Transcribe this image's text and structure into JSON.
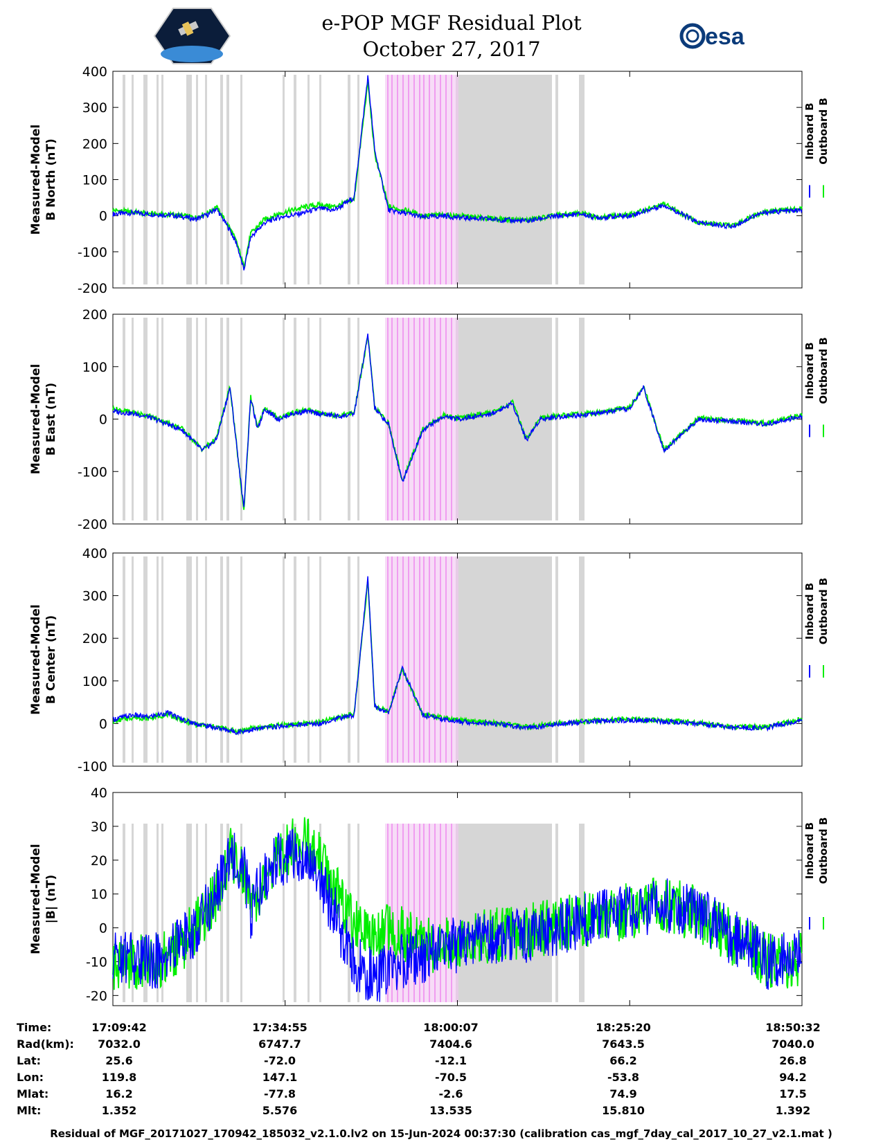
{
  "header": {
    "title": "e-POP MGF Residual Plot",
    "date": "October 27, 2017",
    "esa_logo_text": "esa"
  },
  "colors": {
    "inboard": "#0000ff",
    "outboard": "#00ee00",
    "shade_gray": "#d6d6d6",
    "shade_pink": "#f2c4f2"
  },
  "chart_data": [
    {
      "type": "line",
      "ylabel_lines": [
        "Measured-Model",
        "B North (nT)"
      ],
      "ylim": [
        -200,
        400
      ],
      "yticks": [
        -200,
        -100,
        0,
        100,
        200,
        300,
        400
      ],
      "legend": [
        "Inboard B",
        "Outboard B"
      ],
      "series": [
        {
          "name": "Inboard B",
          "x": [
            0,
            3,
            5,
            8,
            10,
            12,
            14,
            15,
            17,
            18,
            19,
            20,
            22,
            24,
            27,
            28,
            30,
            32,
            33,
            35,
            37,
            38,
            40,
            43,
            45,
            48,
            50,
            55,
            60,
            63,
            65,
            68,
            70,
            75,
            80,
            85,
            90,
            93,
            95,
            100
          ],
          "y": [
            5,
            8,
            5,
            2,
            -2,
            -10,
            5,
            20,
            -40,
            -80,
            -150,
            -60,
            -20,
            -5,
            5,
            10,
            20,
            15,
            25,
            50,
            385,
            180,
            15,
            5,
            -5,
            0,
            -5,
            -10,
            -15,
            -5,
            0,
            5,
            -5,
            0,
            30,
            -20,
            -30,
            0,
            10,
            15
          ]
        },
        {
          "name": "Outboard B",
          "x": [
            0,
            3,
            5,
            8,
            10,
            12,
            14,
            15,
            17,
            18,
            19,
            20,
            22,
            24,
            27,
            28,
            30,
            32,
            33,
            35,
            37,
            38,
            40,
            43,
            45,
            48,
            50,
            55,
            60,
            63,
            65,
            68,
            70,
            75,
            80,
            85,
            90,
            93,
            95,
            100
          ],
          "y": [
            15,
            10,
            6,
            3,
            0,
            -5,
            10,
            25,
            -35,
            -75,
            -140,
            -50,
            -10,
            5,
            20,
            25,
            30,
            25,
            30,
            45,
            370,
            170,
            25,
            12,
            0,
            2,
            0,
            -8,
            -12,
            -3,
            2,
            7,
            -3,
            2,
            32,
            -18,
            -28,
            2,
            12,
            20
          ]
        }
      ]
    },
    {
      "type": "line",
      "ylabel_lines": [
        "Measured-Model",
        "B East (nT)"
      ],
      "ylim": [
        -200,
        200
      ],
      "yticks": [
        -200,
        -100,
        0,
        100,
        200
      ],
      "legend": [
        "Inboard B",
        "Outboard B"
      ],
      "series": [
        {
          "name": "Inboard B",
          "x": [
            0,
            3,
            5,
            8,
            10,
            13,
            15,
            17,
            19,
            20,
            21,
            22,
            24,
            26,
            28,
            30,
            33,
            35,
            37,
            38,
            40,
            42,
            45,
            48,
            50,
            55,
            58,
            60,
            62,
            65,
            70,
            75,
            77,
            80,
            85,
            90,
            95,
            100
          ],
          "y": [
            15,
            10,
            5,
            -10,
            -20,
            -60,
            -40,
            60,
            -170,
            40,
            -20,
            20,
            0,
            10,
            15,
            10,
            5,
            10,
            160,
            20,
            -10,
            -120,
            -20,
            5,
            0,
            10,
            30,
            -40,
            0,
            5,
            10,
            20,
            60,
            -60,
            0,
            -5,
            -10,
            5
          ]
        },
        {
          "name": "Outboard B",
          "x": [
            0,
            3,
            5,
            8,
            10,
            13,
            15,
            17,
            19,
            20,
            21,
            22,
            24,
            26,
            28,
            30,
            33,
            35,
            37,
            38,
            40,
            42,
            45,
            48,
            50,
            55,
            58,
            60,
            62,
            65,
            70,
            75,
            77,
            80,
            85,
            90,
            95,
            100
          ],
          "y": [
            20,
            12,
            7,
            -8,
            -18,
            -58,
            -38,
            62,
            -175,
            42,
            -18,
            22,
            2,
            12,
            17,
            12,
            7,
            12,
            158,
            22,
            -8,
            -118,
            -18,
            7,
            2,
            12,
            32,
            -38,
            2,
            7,
            12,
            22,
            62,
            -58,
            2,
            -3,
            -8,
            8
          ]
        }
      ]
    },
    {
      "type": "line",
      "ylabel_lines": [
        "Measured-Model",
        "B Center (nT)"
      ],
      "ylim": [
        -100,
        400
      ],
      "yticks": [
        -100,
        0,
        100,
        200,
        300,
        400
      ],
      "legend": [
        "Inboard B",
        "Outboard B"
      ],
      "series": [
        {
          "name": "Inboard B",
          "x": [
            0,
            3,
            5,
            8,
            10,
            12,
            15,
            18,
            20,
            22,
            25,
            30,
            32,
            35,
            37,
            38,
            40,
            42,
            45,
            48,
            50,
            55,
            60,
            63,
            65,
            70,
            75,
            80,
            85,
            90,
            95,
            100
          ],
          "y": [
            10,
            20,
            15,
            25,
            10,
            0,
            -10,
            -20,
            -15,
            -10,
            -5,
            0,
            10,
            20,
            340,
            40,
            25,
            130,
            20,
            10,
            5,
            0,
            -10,
            -5,
            0,
            5,
            8,
            5,
            0,
            -10,
            -10,
            10
          ]
        },
        {
          "name": "Outboard B",
          "x": [
            0,
            3,
            5,
            8,
            10,
            12,
            15,
            18,
            20,
            22,
            25,
            30,
            32,
            35,
            37,
            38,
            40,
            42,
            45,
            48,
            50,
            55,
            60,
            63,
            65,
            70,
            75,
            80,
            85,
            90,
            95,
            100
          ],
          "y": [
            5,
            15,
            12,
            22,
            8,
            -2,
            -8,
            -18,
            -12,
            -8,
            -3,
            2,
            12,
            22,
            335,
            42,
            27,
            128,
            22,
            12,
            7,
            2,
            -8,
            -3,
            2,
            7,
            10,
            7,
            2,
            -8,
            -8,
            12
          ]
        }
      ]
    },
    {
      "type": "line",
      "ylabel_lines": [
        "Measured-Model",
        "|B| (nT)"
      ],
      "ylim": [
        -23,
        40
      ],
      "yticks": [
        -20,
        -10,
        0,
        10,
        20,
        30,
        40
      ],
      "legend": [
        "Inboard B",
        "Outboard B"
      ],
      "series": [
        {
          "name": "Inboard B",
          "x": [
            0,
            2,
            4,
            6,
            8,
            10,
            12,
            15,
            17,
            19,
            20,
            22,
            24,
            26,
            28,
            30,
            32,
            35,
            38,
            40,
            42,
            45,
            48,
            50,
            55,
            60,
            65,
            70,
            75,
            80,
            85,
            88,
            90,
            93,
            95,
            98,
            100
          ],
          "y": [
            -8,
            -8,
            -10,
            -10,
            -8,
            -5,
            0,
            10,
            22,
            18,
            5,
            15,
            20,
            22,
            20,
            15,
            5,
            -10,
            -15,
            -12,
            -10,
            -8,
            -6,
            -5,
            -3,
            -2,
            0,
            3,
            5,
            7,
            4,
            0,
            -3,
            -6,
            -10,
            -9,
            -8
          ]
        },
        {
          "name": "Outboard B",
          "x": [
            0,
            2,
            4,
            6,
            8,
            10,
            12,
            15,
            17,
            19,
            20,
            22,
            24,
            26,
            28,
            30,
            32,
            35,
            38,
            40,
            42,
            45,
            48,
            50,
            55,
            60,
            65,
            70,
            75,
            80,
            85,
            88,
            90,
            93,
            95,
            98,
            100
          ],
          "y": [
            -10,
            -10,
            -10,
            -10,
            -8,
            -5,
            0,
            10,
            22,
            18,
            5,
            15,
            21,
            24,
            25,
            22,
            12,
            0,
            -2,
            0,
            -2,
            -5,
            -5,
            -4,
            -2,
            -1,
            1,
            3,
            5,
            7,
            4,
            0,
            -3,
            -6,
            -10,
            -10,
            -10
          ]
        }
      ]
    }
  ],
  "x_axis": {
    "labels": [
      {
        "time": "17:09:42",
        "rad": "7032.0",
        "lat": "25.6",
        "lon": "119.8",
        "mlat": "16.2",
        "mlt": "1.352"
      },
      {
        "time": "17:34:55",
        "rad": "6747.7",
        "lat": "-72.0",
        "lon": "147.1",
        "mlat": "-77.8",
        "mlt": "5.576"
      },
      {
        "time": "18:00:07",
        "rad": "7404.6",
        "lat": "-12.1",
        "lon": "-70.5",
        "mlat": "-2.6",
        "mlt": "13.535"
      },
      {
        "time": "18:25:20",
        "rad": "7643.5",
        "lat": "66.2",
        "lon": "-53.8",
        "mlat": "74.9",
        "mlt": "15.810"
      },
      {
        "time": "18:50:32",
        "rad": "7040.0",
        "lat": "26.8",
        "lon": "94.2",
        "mlat": "17.5",
        "mlt": "1.392"
      }
    ],
    "row_labels": [
      "Time:",
      "Rad(km):",
      "Lat:",
      "Lon:",
      "Mlat:",
      "Mlt:"
    ]
  },
  "footer": "Residual of MGF_20171027_170942_185032_v2.1.0.lv2 on 15-Jun-2024 00:37:30 (calibration cas_mgf_7day_cal_2017_10_27_v2.1.mat )"
}
